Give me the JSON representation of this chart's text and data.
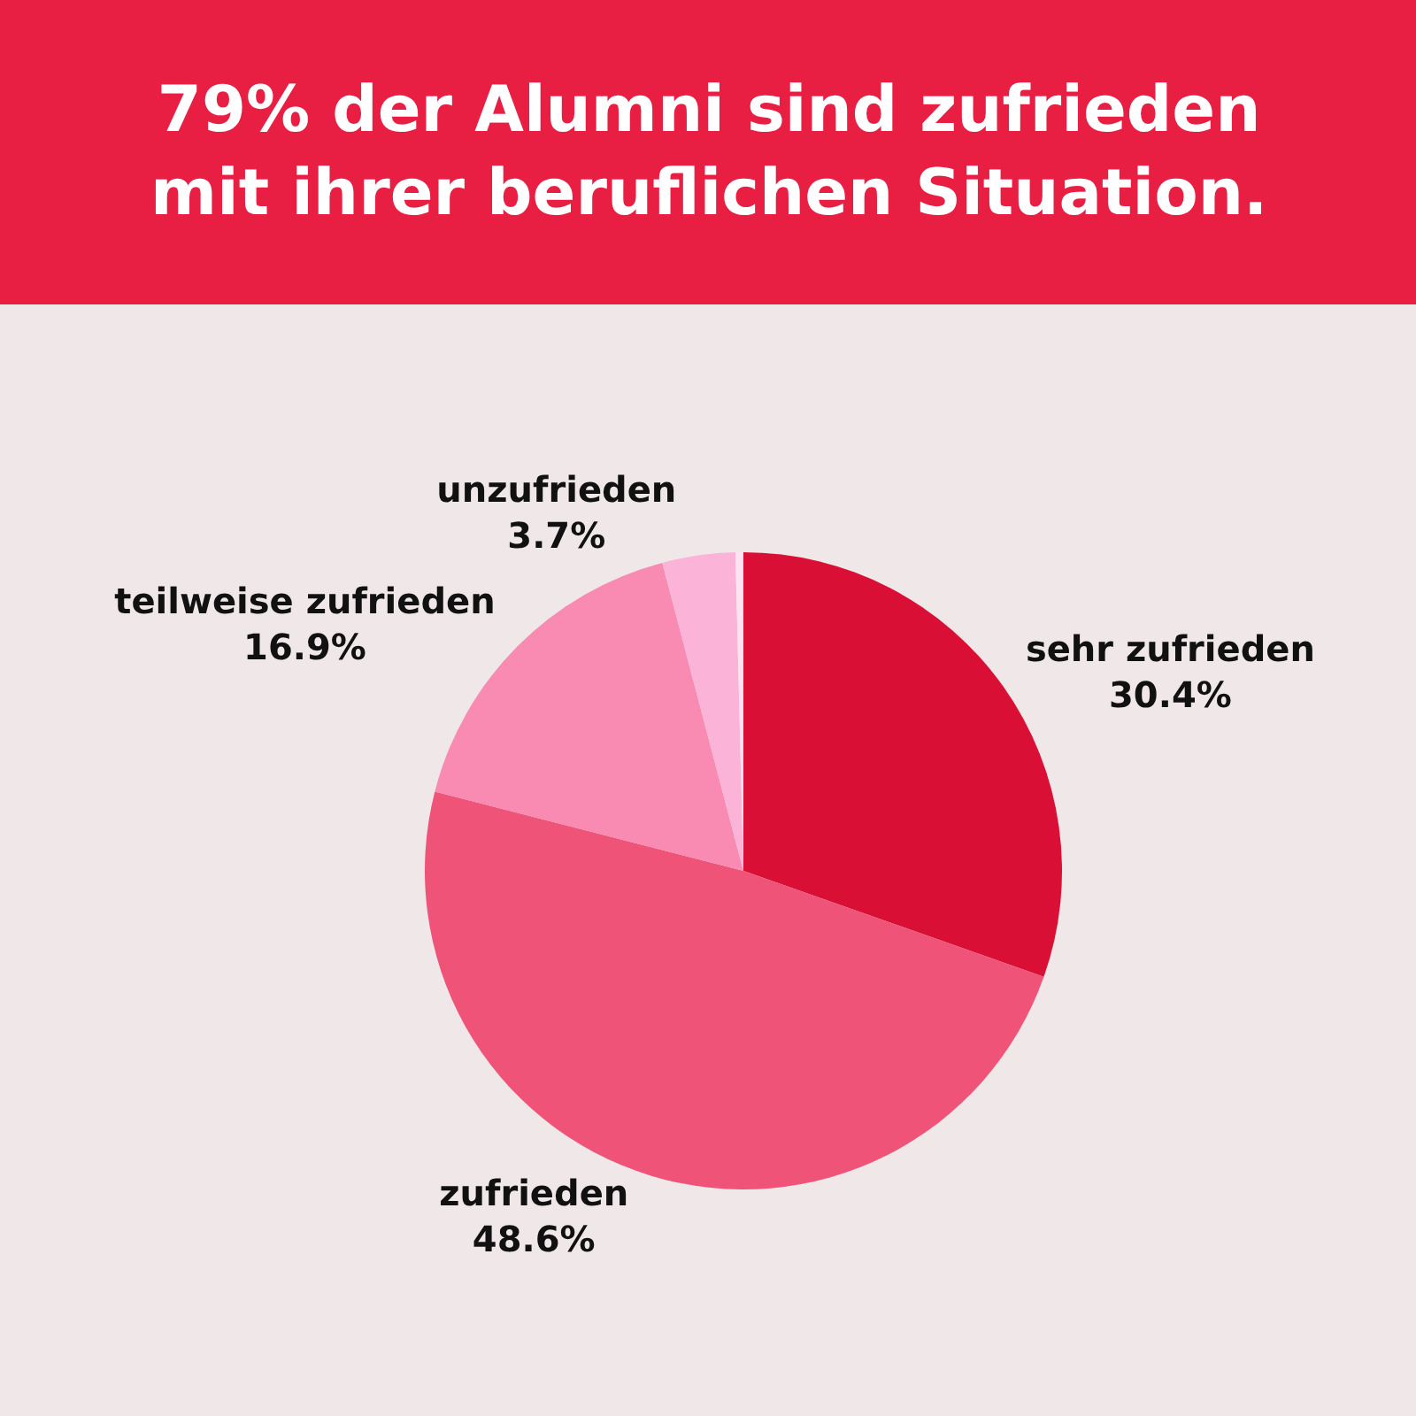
{
  "chart_data": {
    "type": "pie",
    "title": "79% der Alumni sind zufrieden\nmit ihrer beruflichen Situation.",
    "categories": [
      "sehr zufrieden",
      "zufrieden",
      "teilweise zufrieden",
      "unzufrieden",
      null
    ],
    "values": [
      30.4,
      48.6,
      16.9,
      3.7,
      0.4
    ],
    "value_labels": [
      "30.4%",
      "48.6%",
      "16.9%",
      "3.7%",
      null
    ],
    "colors": [
      "#d90f35",
      "#ef5478",
      "#f98ab2",
      "#fbb4d8",
      "#fde4f0"
    ],
    "legend": false
  }
}
